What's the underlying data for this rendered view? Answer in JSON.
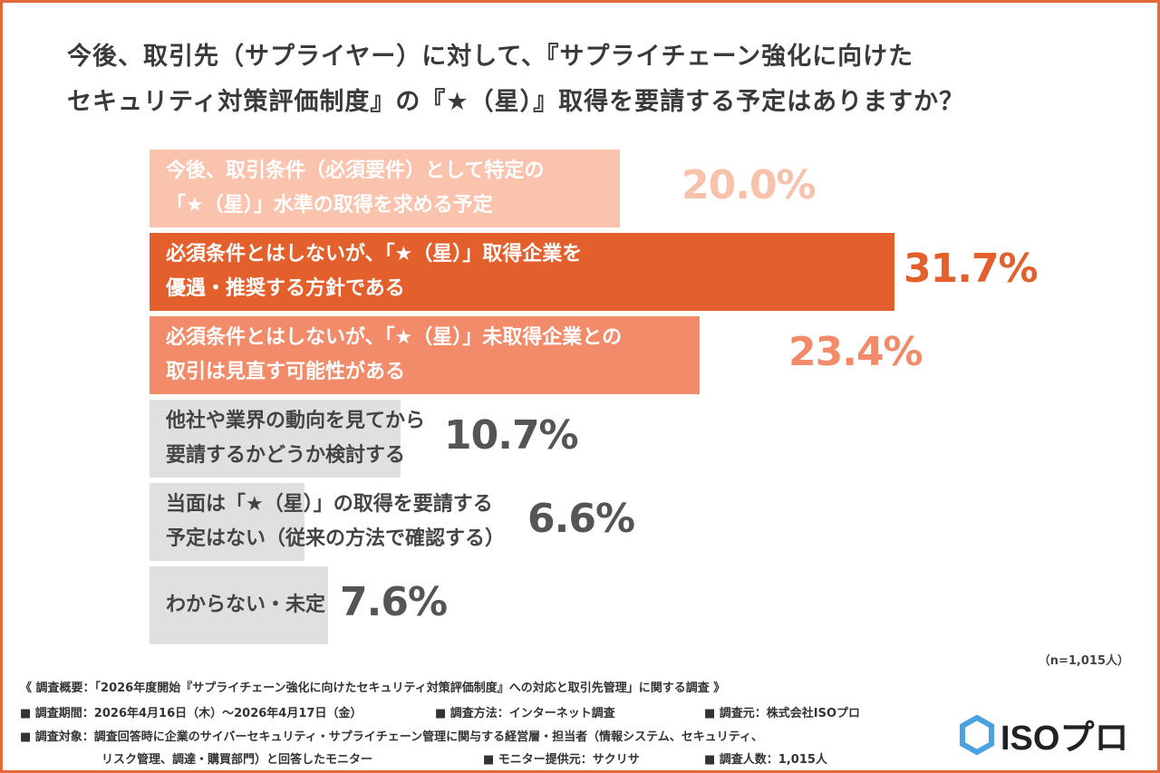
{
  "title": {
    "line1": "今後、取引先（サプライヤー）に対して、『サプライチェーン強化に向けた",
    "line2": "セキュリティ対策評価制度』の『★（星）』取得を要請する予定はありますか？"
  },
  "chart_data": {
    "type": "bar",
    "orientation": "horizontal",
    "unit": "%",
    "categories": [
      [
        "今後、取引条件（必須要件）として特定の",
        "「★（星）」水準の取得を求める予定"
      ],
      [
        "必須条件とはしないが、「★（星）」取得企業を",
        "優遇・推奨する方針である"
      ],
      [
        "必須条件とはしないが、「★（星）」未取得企業との",
        "取引は見直す可能性がある"
      ],
      [
        "他社や業界の動向を見てから",
        "要請するかどうか検討する"
      ],
      [
        "当面は「★（星）」の取得を要請する",
        "予定はない（従来の方法で確認する）"
      ],
      [
        "わからない・未定"
      ]
    ],
    "values": [
      20.0,
      31.7,
      23.4,
      10.7,
      6.6,
      7.6
    ],
    "value_labels": [
      "20.0%",
      "31.7%",
      "23.4%",
      "10.7%",
      "6.6%",
      "7.6%"
    ],
    "bar_colors": [
      "#f9c3ae",
      "#e3602d",
      "#f28b69",
      "#e0e0e0",
      "#e0e0e0",
      "#e0e0e0"
    ],
    "label_colors": [
      "#ffffff",
      "#ffffff",
      "#ffffff",
      "#444444",
      "#444444",
      "#444444"
    ],
    "value_colors": [
      "#f7c1ac",
      "#e3602d",
      "#f28b69",
      "#555555",
      "#555555",
      "#555555"
    ]
  },
  "sample": "（n=1,015人）",
  "footer": {
    "overview": "《 調査概要：「2026年度開始『サプライチェーン強化に向けたセキュリティ対策評価制度』への対応と取引先管理」に関する調査 》",
    "period": "■ 調査期間：2026年4月16日（木）～2026年4月17日（金）",
    "method": "■ 調査方法：インターネット調査",
    "source": "■ 調査元：株式会社ISOプロ",
    "target1": "■ 調査対象：調査回答時に企業のサイバーセキュリティ・サプライチェーン管理に関与する経営層・担当者（情報システム、セキュリティ、",
    "target2": "リスク管理、調達・購買部門）と回答したモニター",
    "provider": "■ モニター提供元：サクリサ",
    "count": "■ 調査人数：1,015人"
  },
  "logo": {
    "text": "ISOプロ",
    "color": "#3a8fd6"
  }
}
